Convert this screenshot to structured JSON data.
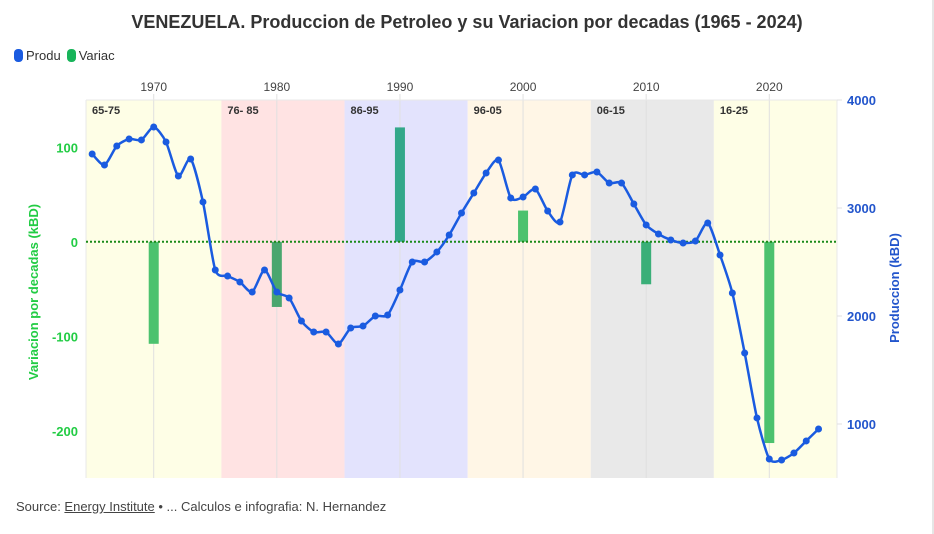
{
  "chart_data": {
    "type": "bar+line",
    "title": "VENEZUELA. Produccion de Petroleo y su Variacion por decadas (1965 - 2024)",
    "legend": [
      {
        "label": "Produ",
        "color": "#1a5be0"
      },
      {
        "label": "Variac",
        "color": "#18b45a"
      }
    ],
    "legend_position": "top-left",
    "x_axis": {
      "position": "top",
      "ticks": [
        1970,
        1980,
        1990,
        2000,
        2010,
        2020
      ],
      "range": [
        1964.5,
        2025.5
      ]
    },
    "y_left": {
      "label": "Variacion por decadas (kBD)",
      "ticks": [
        100,
        0,
        -100,
        -200
      ],
      "range": [
        -250,
        150
      ],
      "color": "#22cc44"
    },
    "y_right": {
      "label": "Produccion (kBD)",
      "ticks": [
        4000,
        3000,
        2000,
        1000
      ],
      "range": [
        500,
        4000
      ],
      "color": "#2255cc"
    },
    "bands": [
      {
        "label": "65-75",
        "from": 1964.5,
        "to": 1975.5,
        "color": "#fefee6"
      },
      {
        "label": "76- 85",
        "from": 1975.5,
        "to": 1985.5,
        "color": "#ffe3e3"
      },
      {
        "label": "86-95",
        "from": 1985.5,
        "to": 1995.5,
        "color": "#e3e3fd"
      },
      {
        "label": "96-05",
        "from": 1995.5,
        "to": 2005.5,
        "color": "#fff6e6"
      },
      {
        "label": "06-15",
        "from": 2005.5,
        "to": 2015.5,
        "color": "#e9e9e9"
      },
      {
        "label": "16-25",
        "from": 2015.5,
        "to": 2025.5,
        "color": "#fefee6"
      }
    ],
    "bars": {
      "name": "Variac",
      "x": [
        1970,
        1980,
        1990,
        2000,
        2010,
        2020
      ],
      "values": [
        -108,
        -69,
        121,
        33,
        -45,
        -213
      ],
      "colors": [
        "#4cc26e",
        "#4aa66e",
        "#33a88a",
        "#4cc26e",
        "#3aaf78",
        "#4cc26e"
      ]
    },
    "series": [
      {
        "name": "Produ",
        "color": "#1a5be0",
        "x": [
          1965,
          1966,
          1967,
          1968,
          1969,
          1970,
          1971,
          1972,
          1973,
          1974,
          1975,
          1976,
          1977,
          1978,
          1979,
          1980,
          1981,
          1982,
          1983,
          1984,
          1985,
          1986,
          1987,
          1988,
          1989,
          1990,
          1991,
          1992,
          1993,
          1994,
          1995,
          1996,
          1997,
          1998,
          1999,
          2000,
          2001,
          2002,
          2003,
          2004,
          2005,
          2006,
          2007,
          2008,
          2009,
          2010,
          2011,
          2012,
          2013,
          2014,
          2015,
          2016,
          2017,
          2018,
          2019,
          2020,
          2021,
          2022,
          2023,
          2024
        ],
        "values": [
          3500,
          3398,
          3574,
          3639,
          3630,
          3750,
          3611,
          3296,
          3454,
          3056,
          2426,
          2370,
          2315,
          2222,
          2426,
          2222,
          2167,
          1954,
          1852,
          1852,
          1741,
          1889,
          1907,
          2000,
          2009,
          2241,
          2500,
          2500,
          2593,
          2750,
          2954,
          3139,
          3324,
          3444,
          3093,
          3102,
          3176,
          2972,
          2870,
          3306,
          3306,
          3333,
          3231,
          3231,
          3037,
          2843,
          2759,
          2704,
          2676,
          2694,
          2861,
          2565,
          2213,
          1657,
          1056,
          676,
          667,
          731,
          843,
          954
        ]
      }
    ],
    "zero_line": {
      "value": 0,
      "style": "dotted",
      "color": "#1a8a1a"
    }
  },
  "footer": {
    "source_prefix": "Source: ",
    "source_link": "Energy Institute",
    "rest": " • ... Calculos e infografia: N. Hernandez"
  }
}
